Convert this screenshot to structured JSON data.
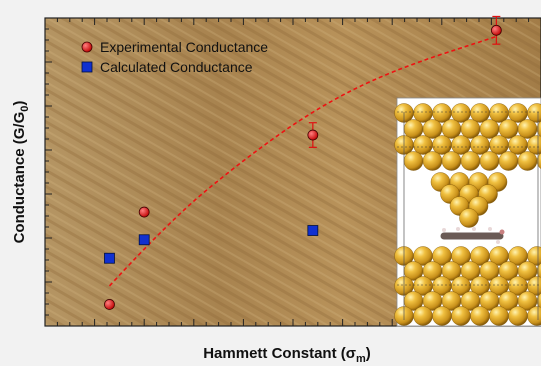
{
  "chart_data": {
    "type": "scatter",
    "xlabel_main": "Hammett Constant (σ",
    "xlabel_sub": "m",
    "xlabel_close": ")",
    "ylabel_main": "Conductance (G/G",
    "ylabel_sub": "0",
    "ylabel_close": ")",
    "xlim": [
      -0.2,
      0.8
    ],
    "ylim": [
      0,
      1
    ],
    "legend_position": "top-left",
    "grid": false,
    "series": [
      {
        "name": "Experimental Conductance",
        "marker": "circle",
        "color": "#e01010",
        "points": [
          {
            "x": -0.07,
            "y": 0.07
          },
          {
            "x": 0.0,
            "y": 0.37
          },
          {
            "x": 0.34,
            "y": 0.62
          },
          {
            "x": 0.71,
            "y": 0.96
          }
        ],
        "error_bars": [
          0,
          0,
          0.04,
          0.045
        ]
      },
      {
        "name": "Calculated Conductance",
        "marker": "square",
        "color": "#1030d0",
        "points": [
          {
            "x": -0.07,
            "y": 0.22
          },
          {
            "x": 0.0,
            "y": 0.28
          },
          {
            "x": 0.34,
            "y": 0.31
          }
        ]
      }
    ],
    "trendline": {
      "style": "dashed",
      "color": "#e01010",
      "points": [
        {
          "x": -0.07,
          "y": 0.13
        },
        {
          "x": 0.05,
          "y": 0.34
        },
        {
          "x": 0.2,
          "y": 0.54
        },
        {
          "x": 0.35,
          "y": 0.71
        },
        {
          "x": 0.5,
          "y": 0.83
        },
        {
          "x": 0.71,
          "y": 0.94
        }
      ]
    }
  },
  "colors": {
    "background_gold": "#b08a55",
    "atom_gold": "#d9a62e",
    "molecule_gray": "#7a6a62"
  }
}
